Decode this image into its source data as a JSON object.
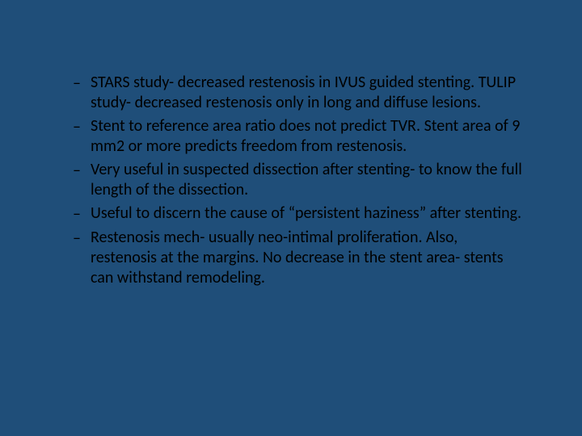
{
  "slide": {
    "background_color": "#1f4e79",
    "text_color": "#000000",
    "font_family": "Calibri",
    "font_size_pt": 20,
    "bullets": [
      {
        "dash": "–",
        "text": "STARS study- decreased restenosis in IVUS guided stenting. TULIP study- decreased restenosis only in long and diffuse lesions."
      },
      {
        "dash": "–",
        "text": "Stent to reference area ratio does not predict TVR. Stent area of 9 mm2 or more predicts freedom from restenosis."
      },
      {
        "dash": "–",
        "text": "Very useful in suspected dissection after stenting- to know the full length of the dissection."
      },
      {
        "dash": "–",
        "text": "Useful to discern the cause of “persistent haziness” after stenting."
      },
      {
        "dash": "–",
        "text": "Restenosis mech- usually neo-intimal proliferation. Also, restenosis at the margins. No decrease in the stent area- stents can withstand remodeling."
      }
    ]
  }
}
